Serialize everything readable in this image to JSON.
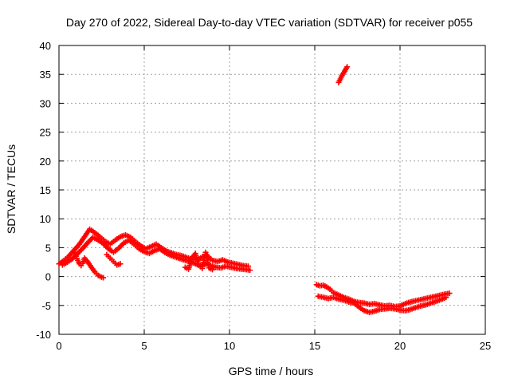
{
  "chart_data": {
    "type": "scatter",
    "title": "Day 270 of 2022, Sidereal Day-to-day VTEC variation (SDTVAR) for receiver p055",
    "xlabel": "GPS time / hours",
    "ylabel": "SDTVAR / TECUs",
    "xlim": [
      0,
      25
    ],
    "ylim": [
      -10,
      40
    ],
    "xticks": [
      0,
      5,
      10,
      15,
      20,
      25
    ],
    "yticks": [
      -10,
      -5,
      0,
      5,
      10,
      15,
      20,
      25,
      30,
      35,
      40
    ],
    "grid": true,
    "marker": "plus",
    "series": [
      {
        "name": "SDTVAR",
        "color": "#ff0000",
        "segments": [
          {
            "t": [
              0.0,
              0.3,
              0.6,
              0.9,
              1.2,
              1.5,
              1.8,
              2.1,
              2.4,
              2.7,
              3.0,
              3.3,
              3.6,
              3.9,
              4.2,
              4.5,
              4.8,
              5.1,
              5.4,
              5.7,
              6.0,
              6.3,
              6.6,
              6.9,
              7.2,
              7.5,
              7.8,
              8.1,
              8.4,
              8.7,
              9.0,
              9.3,
              9.6,
              9.9,
              10.2,
              10.5,
              10.8,
              11.1
            ],
            "v": [
              2.2,
              2.8,
              3.6,
              4.6,
              5.6,
              6.9,
              8.2,
              7.6,
              6.9,
              6.1,
              5.6,
              6.3,
              6.9,
              7.2,
              6.8,
              6.0,
              5.3,
              4.8,
              5.2,
              5.6,
              5.0,
              4.4,
              4.1,
              3.8,
              3.6,
              3.3,
              3.0,
              2.9,
              3.4,
              3.6,
              2.8,
              2.6,
              2.9,
              2.5,
              2.3,
              2.1,
              1.9,
              1.8
            ]
          },
          {
            "t": [
              0.2,
              0.5,
              0.8,
              1.1,
              1.4,
              1.7,
              2.0,
              2.3,
              2.6,
              2.9,
              3.2,
              3.5,
              3.8,
              4.1,
              4.4,
              4.7,
              5.0,
              5.3,
              5.6,
              5.9,
              6.2,
              6.5,
              6.8,
              7.1,
              7.4,
              7.7,
              8.0,
              8.3,
              8.6,
              8.9,
              9.2,
              9.5,
              9.8,
              10.1,
              10.4,
              10.7,
              11.0,
              11.2
            ],
            "v": [
              2.0,
              2.5,
              3.1,
              4.0,
              4.9,
              5.9,
              6.8,
              6.3,
              5.7,
              4.8,
              4.2,
              4.9,
              5.8,
              6.3,
              5.6,
              4.8,
              4.3,
              4.0,
              4.5,
              4.8,
              4.2,
              3.7,
              3.4,
              3.1,
              2.8,
              2.6,
              2.2,
              1.8,
              2.3,
              1.9,
              1.6,
              1.5,
              1.8,
              1.6,
              1.4,
              1.3,
              1.2,
              1.1
            ]
          },
          {
            "t": [
              0.9,
              1.0,
              1.1,
              1.2,
              1.3,
              1.4,
              1.5,
              1.7,
              1.9,
              2.1,
              2.3,
              2.5,
              2.6
            ],
            "v": [
              4.2,
              3.5,
              2.8,
              2.2,
              1.9,
              2.3,
              3.2,
              2.5,
              1.6,
              0.8,
              0.2,
              -0.1,
              -0.2
            ]
          },
          {
            "t": [
              2.8,
              3.0,
              3.2,
              3.4,
              3.6
            ],
            "v": [
              3.8,
              3.2,
              2.6,
              2.0,
              2.2
            ]
          },
          {
            "t": [
              7.4,
              7.6,
              7.8,
              8.0,
              8.2,
              8.4,
              8.6,
              8.8,
              9.0
            ],
            "v": [
              1.6,
              1.3,
              3.2,
              4.0,
              2.0,
              1.4,
              4.2,
              1.5,
              1.2
            ]
          },
          {
            "t": [
              16.4,
              16.5,
              16.6,
              16.7,
              16.8,
              16.9
            ],
            "v": [
              33.6,
              34.2,
              34.8,
              35.3,
              35.8,
              36.3
            ]
          },
          {
            "t": [
              15.1,
              15.3,
              15.5,
              15.7,
              15.9,
              16.1,
              16.4,
              16.7,
              17.0,
              17.3,
              17.6,
              17.9,
              18.2,
              18.5,
              18.8,
              19.1,
              19.4,
              19.7,
              20.0,
              20.3,
              20.6,
              20.9,
              21.2,
              21.5,
              21.8,
              22.1,
              22.4,
              22.7,
              22.9
            ],
            "v": [
              -1.4,
              -1.6,
              -1.5,
              -1.8,
              -2.2,
              -2.8,
              -3.2,
              -3.6,
              -3.9,
              -4.3,
              -4.5,
              -4.6,
              -4.8,
              -4.7,
              -4.9,
              -5.1,
              -5.0,
              -5.2,
              -5.1,
              -4.7,
              -4.4,
              -4.2,
              -4.0,
              -3.8,
              -3.6,
              -3.4,
              -3.2,
              -3.0,
              -2.9
            ]
          },
          {
            "t": [
              15.2,
              15.5,
              15.8,
              16.1,
              16.4,
              16.7,
              17.0,
              17.3,
              17.6,
              17.9,
              18.2,
              18.5,
              18.8,
              19.1,
              19.4,
              19.7,
              20.0,
              20.3,
              20.6,
              20.9,
              21.2,
              21.5,
              21.8,
              22.1,
              22.4,
              22.7
            ],
            "v": [
              -3.4,
              -3.6,
              -3.8,
              -3.6,
              -3.9,
              -4.1,
              -4.4,
              -4.6,
              -5.3,
              -5.9,
              -6.2,
              -6.0,
              -5.7,
              -5.6,
              -5.5,
              -5.6,
              -5.8,
              -5.9,
              -5.7,
              -5.4,
              -5.1,
              -4.9,
              -4.6,
              -4.3,
              -4.0,
              -3.6
            ]
          }
        ]
      }
    ]
  }
}
